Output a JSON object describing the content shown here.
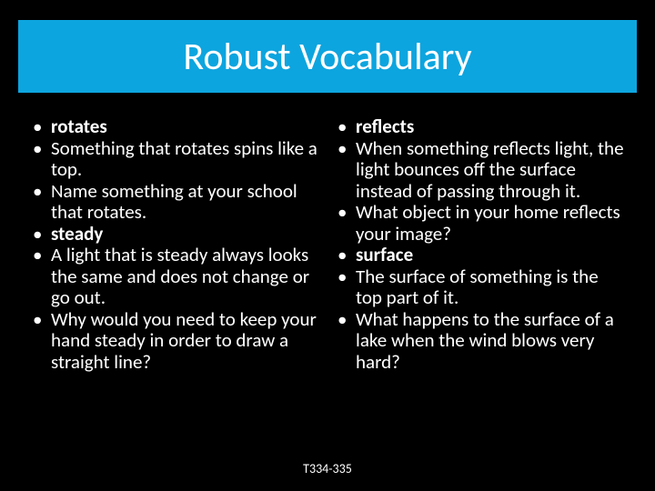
{
  "title": "Robust Vocabulary",
  "title_bar_color": "#0da5df",
  "background_color": "#000000",
  "text_color": "#ffffff",
  "left_items": [
    {
      "text": " rotates",
      "bold": true
    },
    {
      "text": "Something that rotates spins like a top.",
      "bold": false
    },
    {
      "text": "Name something at your school that rotates.",
      "bold": false
    },
    {
      "text": " steady",
      "bold": true
    },
    {
      "text": "A light that is steady always looks the same and does not change or go out.",
      "bold": false
    },
    {
      "text": "Why would you need to keep your hand steady in order to draw a straight line?",
      "bold": false
    }
  ],
  "right_items": [
    {
      "text": " reflects",
      "bold": true
    },
    {
      "text": "When something reflects light, the light bounces off the surface instead of passing through it.",
      "bold": false
    },
    {
      "text": "What object in your home reflects your image?",
      "bold": false
    },
    {
      "text": " surface",
      "bold": true
    },
    {
      "text": "The surface of something is the top part of it.",
      "bold": false
    },
    {
      "text": "What happens to the surface of a lake when the wind blows very hard?",
      "bold": false
    }
  ],
  "footer": "T334-335"
}
